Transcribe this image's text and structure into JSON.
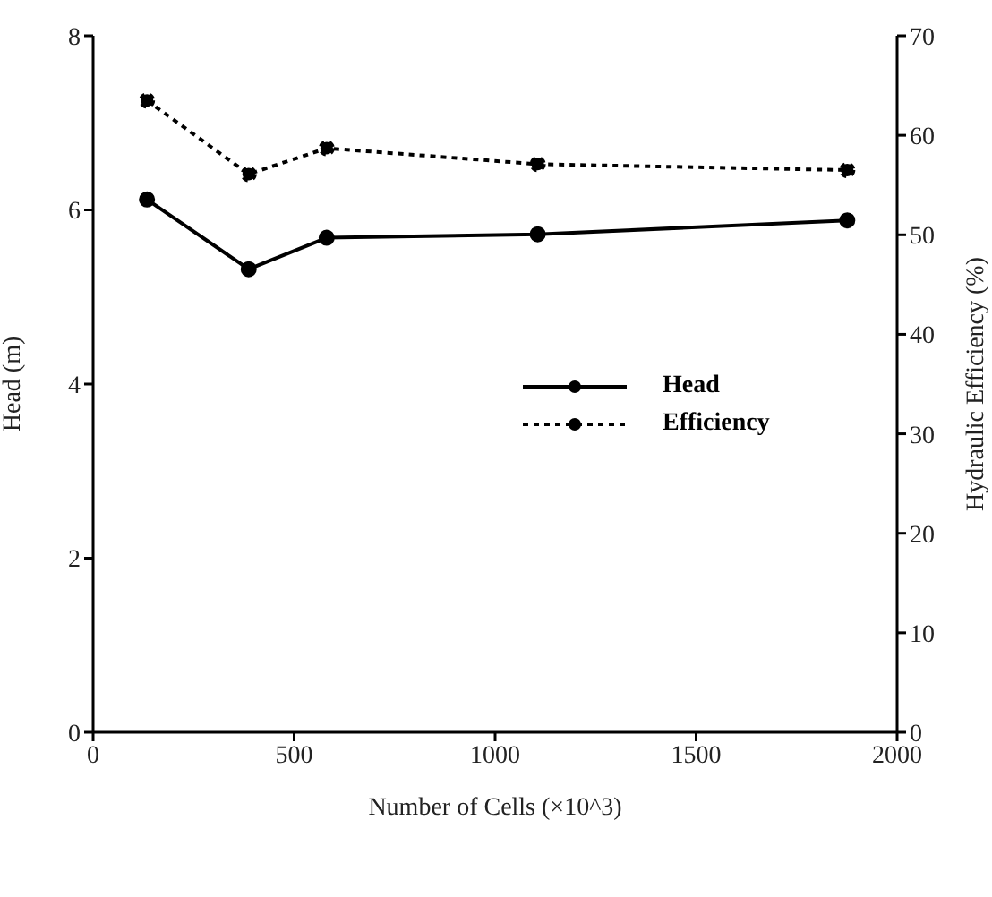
{
  "chart_data": {
    "type": "line",
    "xlabel": "Number of Cells (×10^3)",
    "ylabel": "Head (m)",
    "y2label": "Hydraulic Efficiency (%)",
    "x": [
      134,
      387,
      581,
      1106,
      1876
    ],
    "series": [
      {
        "name": "Head",
        "color": "#000000",
        "line_style": "solid",
        "values": [
          6.12,
          5.32,
          5.68,
          5.72,
          5.88
        ]
      },
      {
        "name": "Efficiency",
        "color": "#000000",
        "line_style": "dotted",
        "axis": "y2",
        "values": [
          63.5,
          56.1,
          58.7,
          57.1,
          56.5
        ]
      }
    ],
    "xlim": [
      0,
      2000
    ],
    "xticks": [
      0,
      500,
      1000,
      1500,
      2000
    ],
    "ylim": [
      0,
      8
    ],
    "yticks": [
      0,
      2,
      4,
      6,
      8
    ],
    "y2lim": [
      0,
      70
    ],
    "y2ticks": [
      0,
      10,
      20,
      30,
      40,
      50,
      60,
      70
    ],
    "marker": "circle",
    "legend": "right",
    "grid": false
  }
}
